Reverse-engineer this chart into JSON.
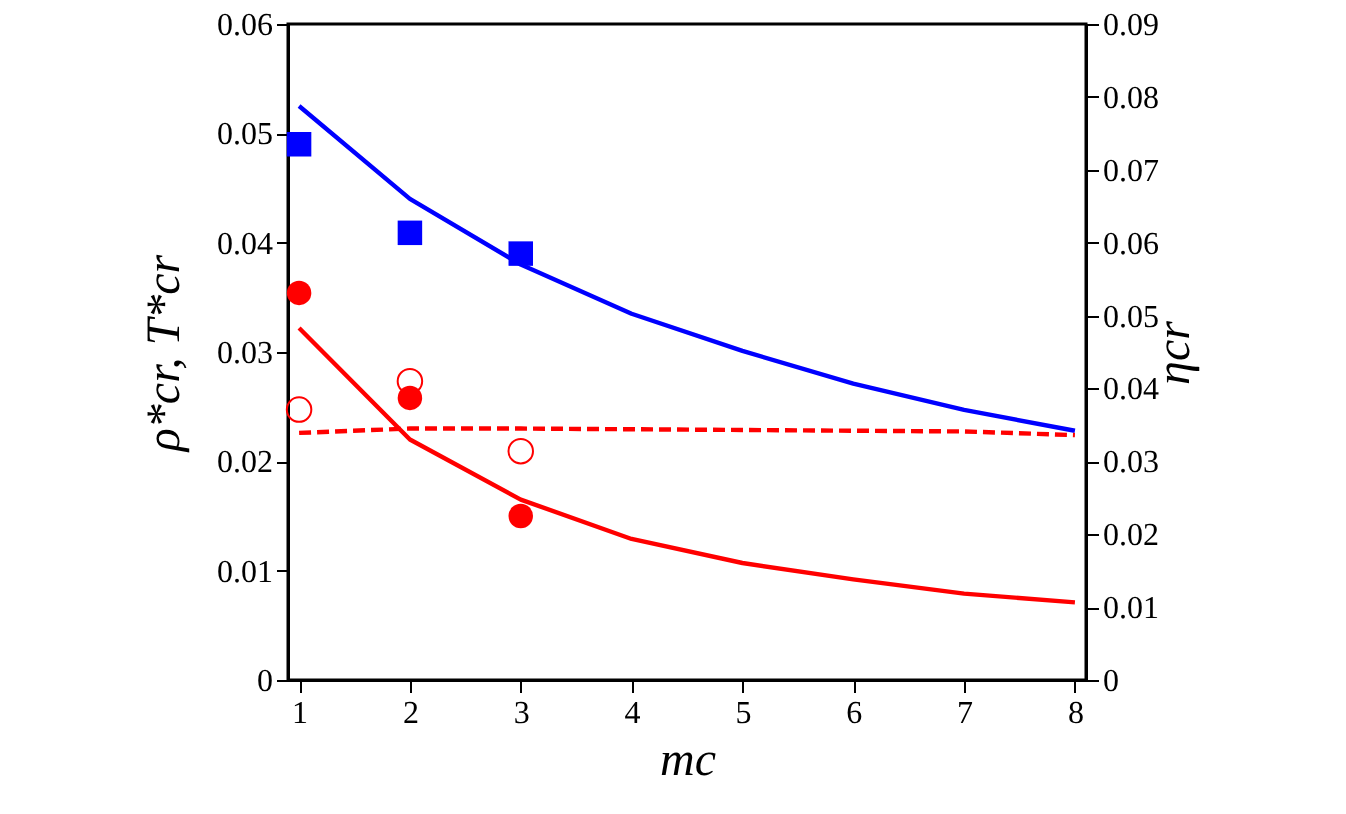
{
  "chart_data": {
    "type": "line",
    "xlabel": "mc",
    "ylabel": "ρ*cr, T*cr",
    "y2label": "ηcr",
    "x": [
      1,
      2,
      3,
      4,
      5,
      6,
      7,
      8
    ],
    "xlim": [
      0.9,
      8.1
    ],
    "xticks": [
      1,
      2,
      3,
      4,
      5,
      6,
      7,
      8
    ],
    "ylim": [
      0,
      0.06
    ],
    "yticks": [
      0,
      0.01,
      0.02,
      0.03,
      0.04,
      0.05,
      0.06
    ],
    "y2lim": [
      0,
      0.09
    ],
    "y2ticks": [
      0,
      0.01,
      0.02,
      0.03,
      0.04,
      0.05,
      0.06,
      0.07,
      0.08,
      0.09
    ],
    "grid": false,
    "series": [
      {
        "color": "#0000ff",
        "line_style": "solid",
        "values": [
          0.0525,
          0.044,
          0.038,
          0.0335,
          0.0301,
          0.0271,
          0.0247,
          0.0228
        ]
      },
      {
        "color": "#ff0000",
        "line_style": "solid",
        "values": [
          0.0322,
          0.022,
          0.0165,
          0.0129,
          0.0107,
          0.0092,
          0.0079,
          0.0071
        ]
      },
      {
        "axis": "y2",
        "color": "#ff0000",
        "line_style": "dashed",
        "values": [
          0.0339,
          0.0345,
          0.0345,
          0.0344,
          0.0343,
          0.0342,
          0.0341,
          0.0336
        ]
      },
      {
        "type": "scatter",
        "x": [
          1,
          2,
          3
        ],
        "color": "#0000ff",
        "marker": "square",
        "values": [
          0.049,
          0.0409,
          0.039
        ]
      },
      {
        "type": "scatter",
        "x": [
          1,
          2,
          3
        ],
        "color": "#ff0000",
        "marker": "circle",
        "values": [
          0.0354,
          0.0258,
          0.015
        ]
      },
      {
        "type": "scatter",
        "x": [
          1,
          2,
          3
        ],
        "axis": "y2",
        "color": "#ff0000",
        "marker": "circle",
        "values": [
          0.0371,
          0.041,
          0.0314
        ]
      }
    ]
  }
}
